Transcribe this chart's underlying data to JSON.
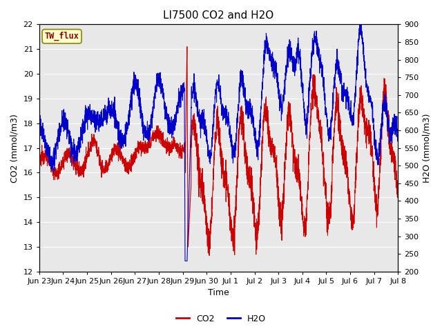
{
  "title": "LI7500 CO2 and H2O",
  "xlabel": "Time",
  "ylabel_left": "CO2 (mmol/m3)",
  "ylabel_right": "H2O (mmol/m3)",
  "annotation": "TW_flux",
  "co2_ylim": [
    12.0,
    22.0
  ],
  "h2o_ylim": [
    200,
    900
  ],
  "co2_yticks": [
    12.0,
    13.0,
    14.0,
    15.0,
    16.0,
    17.0,
    18.0,
    19.0,
    20.0,
    21.0,
    22.0
  ],
  "h2o_yticks": [
    200,
    250,
    300,
    350,
    400,
    450,
    500,
    550,
    600,
    650,
    700,
    750,
    800,
    850,
    900
  ],
  "xtick_labels": [
    "Jun 23",
    "Jun 24",
    "Jun 25",
    "Jun 26",
    "Jun 27",
    "Jun 28",
    "Jun 29",
    "Jun 30",
    "Jul 1",
    "Jul 2",
    "Jul 3",
    "Jul 4",
    "Jul 5",
    "Jul 6",
    "Jul 7",
    "Jul 8"
  ],
  "co2_color": "#cc0000",
  "h2o_color": "#0000cc",
  "bg_color": "#e8e8e8",
  "grid_color": "#ffffff",
  "annotation_bg": "#ffffcc",
  "annotation_border": "#cccc00",
  "legend_co2": "CO2",
  "legend_h2o": "H2O",
  "title_fontsize": 11,
  "axis_label_fontsize": 9,
  "tick_fontsize": 8
}
